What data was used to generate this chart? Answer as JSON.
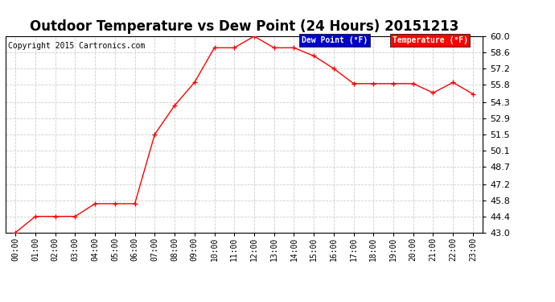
{
  "title": "Outdoor Temperature vs Dew Point (24 Hours) 20151213",
  "copyright": "Copyright 2015 Cartronics.com",
  "x_labels": [
    "00:00",
    "01:00",
    "02:00",
    "03:00",
    "04:00",
    "05:00",
    "06:00",
    "07:00",
    "08:00",
    "09:00",
    "10:00",
    "11:00",
    "12:00",
    "13:00",
    "14:00",
    "15:00",
    "16:00",
    "17:00",
    "18:00",
    "19:00",
    "20:00",
    "21:00",
    "22:00",
    "23:00"
  ],
  "temperature": [
    43.0,
    44.4,
    44.4,
    44.4,
    45.5,
    45.5,
    45.5,
    51.5,
    54.0,
    56.0,
    59.0,
    59.0,
    60.0,
    59.0,
    59.0,
    58.3,
    57.2,
    55.9,
    55.9,
    55.9,
    55.9,
    55.1,
    56.0,
    55.0
  ],
  "temp_color": "#ff0000",
  "dew_color": "#0000cc",
  "bg_color": "#ffffff",
  "grid_color": "#cccccc",
  "ylim_min": 43.0,
  "ylim_max": 60.0,
  "yticks": [
    43.0,
    44.4,
    45.8,
    47.2,
    48.7,
    50.1,
    51.5,
    52.9,
    54.3,
    55.8,
    57.2,
    58.6,
    60.0
  ],
  "title_fontsize": 12,
  "legend_dew_label": "Dew Point (°F)",
  "legend_temp_label": "Temperature (°F)"
}
